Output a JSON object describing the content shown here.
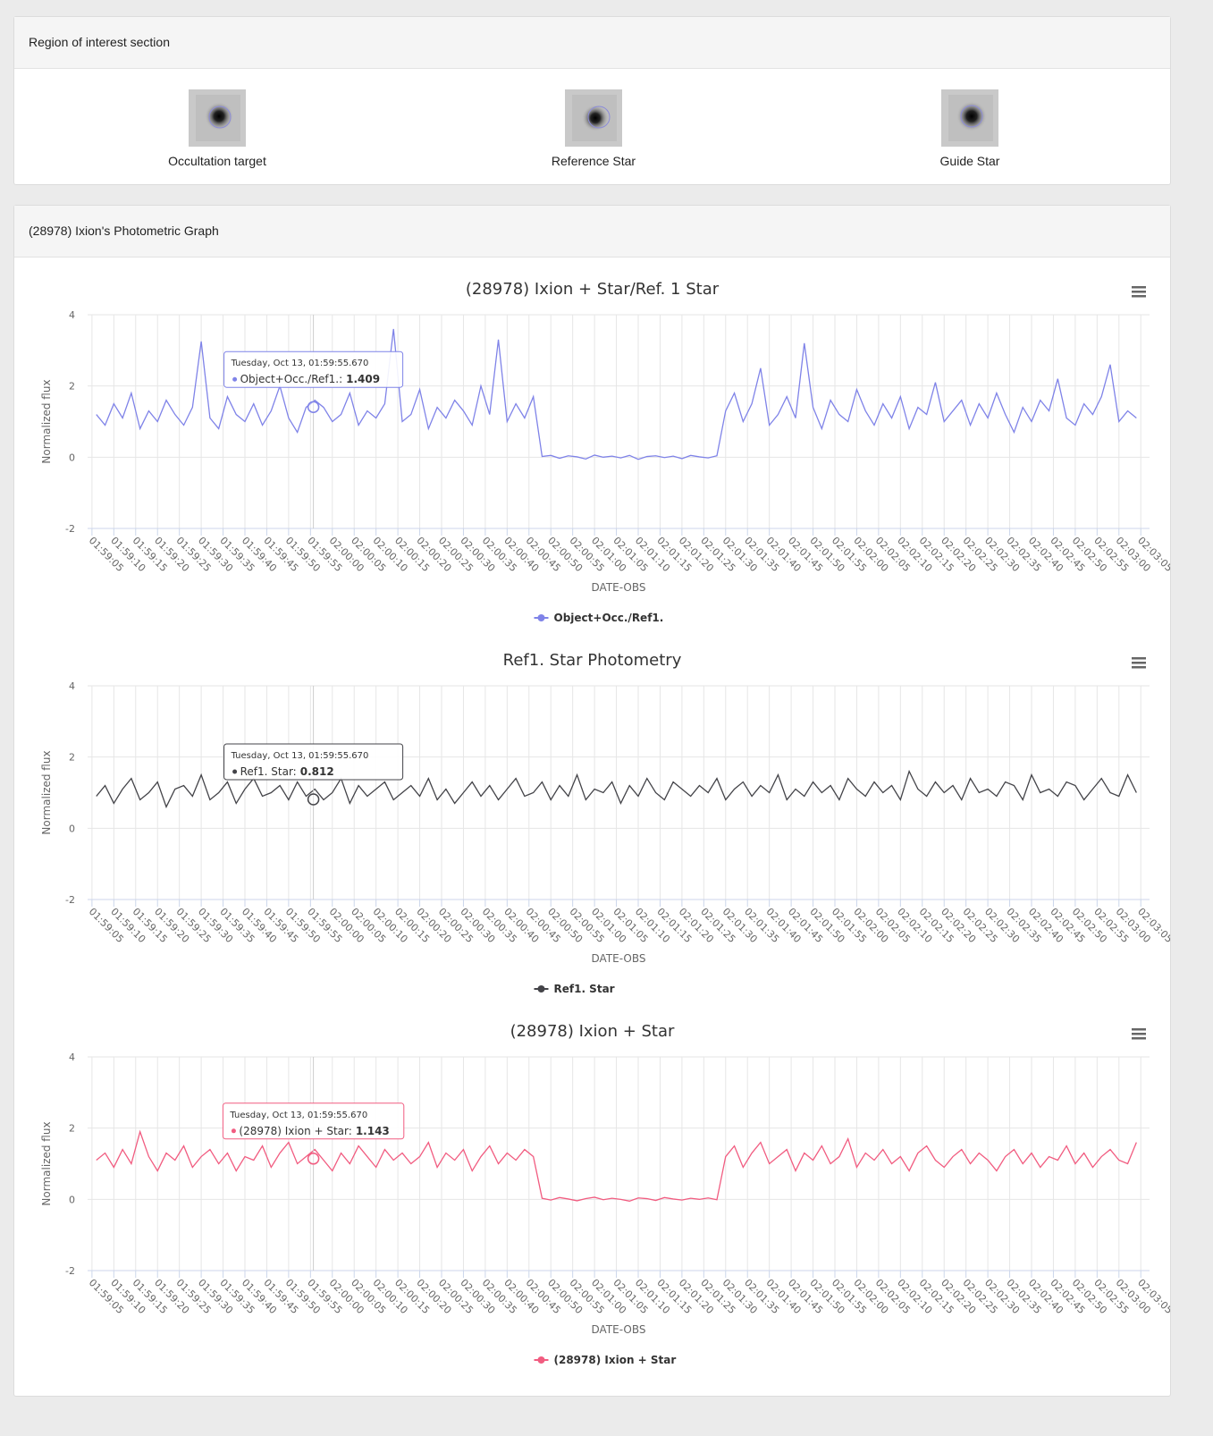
{
  "roi": {
    "title": "Region of interest section",
    "items": [
      "Occultation target",
      "Reference Star",
      "Guide Star"
    ]
  },
  "graph_panel": {
    "title": "(28978) Ixion's Photometric Graph"
  },
  "chart_data": [
    {
      "type": "line",
      "title": "(28978) Ixion + Star/Ref. 1 Star",
      "x_label": "DATE-OBS",
      "y_label": "Normalized flux",
      "x": [
        "01:59:06",
        "01:59:08",
        "01:59:10",
        "01:59:12",
        "01:59:14",
        "01:59:16",
        "01:59:18",
        "01:59:20",
        "01:59:22",
        "01:59:24",
        "01:59:26",
        "01:59:28",
        "01:59:30",
        "01:59:32",
        "01:59:34",
        "01:59:36",
        "01:59:38",
        "01:59:40",
        "01:59:42",
        "01:59:44",
        "01:59:46",
        "01:59:48",
        "01:59:50",
        "01:59:52",
        "01:59:54",
        "01:59:56",
        "01:59:58",
        "02:00:00",
        "02:00:02",
        "02:00:04",
        "02:00:06",
        "02:00:08",
        "02:00:10",
        "02:00:12",
        "02:00:14",
        "02:00:16",
        "02:00:18",
        "02:00:20",
        "02:00:22",
        "02:00:24",
        "02:00:26",
        "02:00:28",
        "02:00:30",
        "02:00:32",
        "02:00:34",
        "02:00:36",
        "02:00:38",
        "02:00:40",
        "02:00:42",
        "02:00:44",
        "02:00:46",
        "02:00:48",
        "02:00:50",
        "02:00:52",
        "02:00:54",
        "02:00:56",
        "02:00:58",
        "02:01:00",
        "02:01:02",
        "02:01:04",
        "02:01:06",
        "02:01:08",
        "02:01:10",
        "02:01:12",
        "02:01:14",
        "02:01:16",
        "02:01:18",
        "02:01:20",
        "02:01:22",
        "02:01:24",
        "02:01:26",
        "02:01:28",
        "02:01:30",
        "02:01:32",
        "02:01:34",
        "02:01:36",
        "02:01:38",
        "02:01:40",
        "02:01:42",
        "02:01:44",
        "02:01:46",
        "02:01:48",
        "02:01:50",
        "02:01:52",
        "02:01:54",
        "02:01:56",
        "02:01:58",
        "02:02:00",
        "02:02:02",
        "02:02:04",
        "02:02:06",
        "02:02:08",
        "02:02:10",
        "02:02:12",
        "02:02:14",
        "02:02:16",
        "02:02:18",
        "02:02:20",
        "02:02:22",
        "02:02:24",
        "02:02:26",
        "02:02:28",
        "02:02:30",
        "02:02:32",
        "02:02:34",
        "02:02:36",
        "02:02:38",
        "02:02:40",
        "02:02:42",
        "02:02:44",
        "02:02:46",
        "02:02:48",
        "02:02:50",
        "02:02:52",
        "02:02:54",
        "02:02:56",
        "02:02:58",
        "02:03:00",
        "02:03:02",
        "02:03:04"
      ],
      "xlim": [
        "01:59:04",
        "02:03:07"
      ],
      "xticks": [
        "01:59:05",
        "01:59:10",
        "01:59:15",
        "01:59:20",
        "01:59:25",
        "01:59:30",
        "01:59:35",
        "01:59:40",
        "01:59:45",
        "01:59:50",
        "01:59:55",
        "02:00:00",
        "02:00:05",
        "02:00:10",
        "02:00:15",
        "02:00:20",
        "02:00:25",
        "02:00:30",
        "02:00:35",
        "02:00:40",
        "02:00:45",
        "02:00:50",
        "02:00:55",
        "02:01:00",
        "02:01:05",
        "02:01:10",
        "02:01:15",
        "02:01:20",
        "02:01:25",
        "02:01:30",
        "02:01:35",
        "02:01:40",
        "02:01:45",
        "02:01:50",
        "02:01:55",
        "02:02:00",
        "02:02:05",
        "02:02:10",
        "02:02:15",
        "02:02:20",
        "02:02:25",
        "02:02:30",
        "02:02:35",
        "02:02:40",
        "02:02:45",
        "02:02:50",
        "02:02:55",
        "02:03:00",
        "02:03:05"
      ],
      "ylim": [
        -2,
        4
      ],
      "yticks": [
        -2,
        0,
        2,
        4
      ],
      "grid": true,
      "series": [
        {
          "name": "Object+Occ./Ref1.",
          "color": "#7f83e8",
          "values": [
            1.2,
            0.9,
            1.5,
            1.1,
            1.8,
            0.8,
            1.3,
            1.0,
            1.6,
            1.2,
            0.9,
            1.4,
            3.25,
            1.1,
            0.8,
            1.7,
            1.2,
            1.0,
            1.5,
            0.9,
            1.3,
            2.0,
            1.1,
            0.7,
            1.4,
            1.6,
            1.4,
            1.0,
            1.2,
            1.8,
            0.9,
            1.3,
            1.1,
            1.5,
            3.6,
            1.0,
            1.2,
            1.9,
            0.8,
            1.4,
            1.1,
            1.6,
            1.3,
            0.9,
            2.0,
            1.2,
            3.3,
            1.0,
            1.5,
            1.1,
            1.7,
            0.02,
            0.05,
            -0.03,
            0.04,
            0.01,
            -0.05,
            0.06,
            0.0,
            0.03,
            -0.02,
            0.05,
            -0.06,
            0.02,
            0.04,
            -0.01,
            0.03,
            -0.04,
            0.05,
            0.01,
            -0.02,
            0.04,
            1.3,
            1.8,
            1.0,
            1.5,
            2.5,
            0.9,
            1.2,
            1.7,
            1.1,
            3.2,
            1.4,
            0.8,
            1.6,
            1.2,
            1.0,
            1.9,
            1.3,
            0.9,
            1.5,
            1.1,
            1.7,
            0.8,
            1.4,
            1.2,
            2.1,
            1.0,
            1.3,
            1.6,
            0.9,
            1.5,
            1.1,
            1.8,
            1.2,
            0.7,
            1.4,
            1.0,
            1.6,
            1.3,
            2.2,
            1.1,
            0.9,
            1.5,
            1.2,
            1.7,
            2.6,
            1.0,
            1.3,
            1.1
          ]
        }
      ],
      "tooltip": {
        "date": "Tuesday, Oct 13, 01:59:55.670",
        "label": "Object+Occ./Ref1.:",
        "value": 1.409
      }
    },
    {
      "type": "line",
      "title": "Ref1. Star Photometry",
      "x_label": "DATE-OBS",
      "y_label": "Normalized flux",
      "x": [
        "01:59:06",
        "01:59:08",
        "01:59:10",
        "01:59:12",
        "01:59:14",
        "01:59:16",
        "01:59:18",
        "01:59:20",
        "01:59:22",
        "01:59:24",
        "01:59:26",
        "01:59:28",
        "01:59:30",
        "01:59:32",
        "01:59:34",
        "01:59:36",
        "01:59:38",
        "01:59:40",
        "01:59:42",
        "01:59:44",
        "01:59:46",
        "01:59:48",
        "01:59:50",
        "01:59:52",
        "01:59:54",
        "01:59:56",
        "01:59:58",
        "02:00:00",
        "02:00:02",
        "02:00:04",
        "02:00:06",
        "02:00:08",
        "02:00:10",
        "02:00:12",
        "02:00:14",
        "02:00:16",
        "02:00:18",
        "02:00:20",
        "02:00:22",
        "02:00:24",
        "02:00:26",
        "02:00:28",
        "02:00:30",
        "02:00:32",
        "02:00:34",
        "02:00:36",
        "02:00:38",
        "02:00:40",
        "02:00:42",
        "02:00:44",
        "02:00:46",
        "02:00:48",
        "02:00:50",
        "02:00:52",
        "02:00:54",
        "02:00:56",
        "02:00:58",
        "02:01:00",
        "02:01:02",
        "02:01:04",
        "02:01:06",
        "02:01:08",
        "02:01:10",
        "02:01:12",
        "02:01:14",
        "02:01:16",
        "02:01:18",
        "02:01:20",
        "02:01:22",
        "02:01:24",
        "02:01:26",
        "02:01:28",
        "02:01:30",
        "02:01:32",
        "02:01:34",
        "02:01:36",
        "02:01:38",
        "02:01:40",
        "02:01:42",
        "02:01:44",
        "02:01:46",
        "02:01:48",
        "02:01:50",
        "02:01:52",
        "02:01:54",
        "02:01:56",
        "02:01:58",
        "02:02:00",
        "02:02:02",
        "02:02:04",
        "02:02:06",
        "02:02:08",
        "02:02:10",
        "02:02:12",
        "02:02:14",
        "02:02:16",
        "02:02:18",
        "02:02:20",
        "02:02:22",
        "02:02:24",
        "02:02:26",
        "02:02:28",
        "02:02:30",
        "02:02:32",
        "02:02:34",
        "02:02:36",
        "02:02:38",
        "02:02:40",
        "02:02:42",
        "02:02:44",
        "02:02:46",
        "02:02:48",
        "02:02:50",
        "02:02:52",
        "02:02:54",
        "02:02:56",
        "02:02:58",
        "02:03:00",
        "02:03:02",
        "02:03:04"
      ],
      "xlim": [
        "01:59:04",
        "02:03:07"
      ],
      "xticks": [
        "01:59:05",
        "01:59:10",
        "01:59:15",
        "01:59:20",
        "01:59:25",
        "01:59:30",
        "01:59:35",
        "01:59:40",
        "01:59:45",
        "01:59:50",
        "01:59:55",
        "02:00:00",
        "02:00:05",
        "02:00:10",
        "02:00:15",
        "02:00:20",
        "02:00:25",
        "02:00:30",
        "02:00:35",
        "02:00:40",
        "02:00:45",
        "02:00:50",
        "02:00:55",
        "02:01:00",
        "02:01:05",
        "02:01:10",
        "02:01:15",
        "02:01:20",
        "02:01:25",
        "02:01:30",
        "02:01:35",
        "02:01:40",
        "02:01:45",
        "02:01:50",
        "02:01:55",
        "02:02:00",
        "02:02:05",
        "02:02:10",
        "02:02:15",
        "02:02:20",
        "02:02:25",
        "02:02:30",
        "02:02:35",
        "02:02:40",
        "02:02:45",
        "02:02:50",
        "02:02:55",
        "02:03:00",
        "02:03:05"
      ],
      "ylim": [
        -2,
        4
      ],
      "yticks": [
        -2,
        0,
        2,
        4
      ],
      "grid": true,
      "series": [
        {
          "name": "Ref1. Star",
          "color": "#434348",
          "values": [
            0.9,
            1.2,
            0.7,
            1.1,
            1.4,
            0.8,
            1.0,
            1.3,
            0.6,
            1.1,
            1.2,
            0.9,
            1.5,
            0.8,
            1.0,
            1.3,
            0.7,
            1.1,
            1.4,
            0.9,
            1.0,
            1.2,
            0.8,
            1.3,
            0.9,
            1.1,
            0.8,
            1.0,
            1.4,
            0.7,
            1.2,
            0.9,
            1.1,
            1.3,
            0.8,
            1.0,
            1.2,
            0.9,
            1.4,
            0.8,
            1.1,
            0.7,
            1.0,
            1.3,
            0.9,
            1.2,
            0.8,
            1.1,
            1.4,
            0.9,
            1.0,
            1.3,
            0.8,
            1.2,
            0.9,
            1.5,
            0.8,
            1.1,
            1.0,
            1.3,
            0.7,
            1.2,
            0.9,
            1.4,
            1.0,
            0.8,
            1.3,
            1.1,
            0.9,
            1.2,
            1.0,
            1.4,
            0.8,
            1.1,
            1.3,
            0.9,
            1.2,
            1.0,
            1.5,
            0.8,
            1.1,
            0.9,
            1.3,
            1.0,
            1.2,
            0.8,
            1.4,
            1.1,
            0.9,
            1.3,
            1.0,
            1.2,
            0.8,
            1.6,
            1.1,
            0.9,
            1.3,
            1.0,
            1.2,
            0.8,
            1.4,
            1.0,
            1.1,
            0.9,
            1.3,
            1.2,
            0.8,
            1.5,
            1.0,
            1.1,
            0.9,
            1.3,
            1.2,
            0.8,
            1.1,
            1.4,
            1.0,
            0.9,
            1.5,
            1.0
          ]
        }
      ],
      "tooltip": {
        "date": "Tuesday, Oct 13, 01:59:55.670",
        "label": "Ref1. Star:",
        "value": 0.812
      }
    },
    {
      "type": "line",
      "title": "(28978) Ixion + Star",
      "x_label": "DATE-OBS",
      "y_label": "Normalized flux",
      "x": [
        "01:59:06",
        "01:59:08",
        "01:59:10",
        "01:59:12",
        "01:59:14",
        "01:59:16",
        "01:59:18",
        "01:59:20",
        "01:59:22",
        "01:59:24",
        "01:59:26",
        "01:59:28",
        "01:59:30",
        "01:59:32",
        "01:59:34",
        "01:59:36",
        "01:59:38",
        "01:59:40",
        "01:59:42",
        "01:59:44",
        "01:59:46",
        "01:59:48",
        "01:59:50",
        "01:59:52",
        "01:59:54",
        "01:59:56",
        "01:59:58",
        "02:00:00",
        "02:00:02",
        "02:00:04",
        "02:00:06",
        "02:00:08",
        "02:00:10",
        "02:00:12",
        "02:00:14",
        "02:00:16",
        "02:00:18",
        "02:00:20",
        "02:00:22",
        "02:00:24",
        "02:00:26",
        "02:00:28",
        "02:00:30",
        "02:00:32",
        "02:00:34",
        "02:00:36",
        "02:00:38",
        "02:00:40",
        "02:00:42",
        "02:00:44",
        "02:00:46",
        "02:00:48",
        "02:00:50",
        "02:00:52",
        "02:00:54",
        "02:00:56",
        "02:00:58",
        "02:01:00",
        "02:01:02",
        "02:01:04",
        "02:01:06",
        "02:01:08",
        "02:01:10",
        "02:01:12",
        "02:01:14",
        "02:01:16",
        "02:01:18",
        "02:01:20",
        "02:01:22",
        "02:01:24",
        "02:01:26",
        "02:01:28",
        "02:01:30",
        "02:01:32",
        "02:01:34",
        "02:01:36",
        "02:01:38",
        "02:01:40",
        "02:01:42",
        "02:01:44",
        "02:01:46",
        "02:01:48",
        "02:01:50",
        "02:01:52",
        "02:01:54",
        "02:01:56",
        "02:01:58",
        "02:02:00",
        "02:02:02",
        "02:02:04",
        "02:02:06",
        "02:02:08",
        "02:02:10",
        "02:02:12",
        "02:02:14",
        "02:02:16",
        "02:02:18",
        "02:02:20",
        "02:02:22",
        "02:02:24",
        "02:02:26",
        "02:02:28",
        "02:02:30",
        "02:02:32",
        "02:02:34",
        "02:02:36",
        "02:02:38",
        "02:02:40",
        "02:02:42",
        "02:02:44",
        "02:02:46",
        "02:02:48",
        "02:02:50",
        "02:02:52",
        "02:02:54",
        "02:02:56",
        "02:02:58",
        "02:03:00",
        "02:03:02",
        "02:03:04"
      ],
      "xlim": [
        "01:59:04",
        "02:03:07"
      ],
      "xticks": [
        "01:59:05",
        "01:59:10",
        "01:59:15",
        "01:59:20",
        "01:59:25",
        "01:59:30",
        "01:59:35",
        "01:59:40",
        "01:59:45",
        "01:59:50",
        "01:59:55",
        "02:00:00",
        "02:00:05",
        "02:00:10",
        "02:00:15",
        "02:00:20",
        "02:00:25",
        "02:00:30",
        "02:00:35",
        "02:00:40",
        "02:00:45",
        "02:00:50",
        "02:00:55",
        "02:01:00",
        "02:01:05",
        "02:01:10",
        "02:01:15",
        "02:01:20",
        "02:01:25",
        "02:01:30",
        "02:01:35",
        "02:01:40",
        "02:01:45",
        "02:01:50",
        "02:01:55",
        "02:02:00",
        "02:02:05",
        "02:02:10",
        "02:02:15",
        "02:02:20",
        "02:02:25",
        "02:02:30",
        "02:02:35",
        "02:02:40",
        "02:02:45",
        "02:02:50",
        "02:02:55",
        "02:03:00",
        "02:03:05"
      ],
      "ylim": [
        -2,
        4
      ],
      "yticks": [
        -2,
        0,
        2,
        4
      ],
      "grid": true,
      "series": [
        {
          "name": "(28978) Ixion + Star",
          "color": "#f15c80",
          "values": [
            1.1,
            1.3,
            0.9,
            1.4,
            1.0,
            1.9,
            1.2,
            0.8,
            1.3,
            1.1,
            1.5,
            0.9,
            1.2,
            1.4,
            1.0,
            1.3,
            0.8,
            1.2,
            1.1,
            1.5,
            0.9,
            1.3,
            1.6,
            1.0,
            1.2,
            1.4,
            1.1,
            0.8,
            1.3,
            1.0,
            1.5,
            1.2,
            0.9,
            1.4,
            1.1,
            1.3,
            1.0,
            1.2,
            1.6,
            0.9,
            1.3,
            1.1,
            1.4,
            0.8,
            1.2,
            1.5,
            1.0,
            1.3,
            1.1,
            1.4,
            1.2,
            0.03,
            -0.02,
            0.05,
            0.01,
            -0.04,
            0.02,
            0.06,
            -0.01,
            0.03,
            0.0,
            -0.05,
            0.04,
            0.02,
            -0.03,
            0.05,
            0.01,
            -0.02,
            0.03,
            0.0,
            0.04,
            -0.01,
            1.2,
            1.5,
            0.9,
            1.3,
            1.6,
            1.0,
            1.2,
            1.4,
            0.8,
            1.3,
            1.1,
            1.5,
            1.0,
            1.2,
            1.7,
            0.9,
            1.3,
            1.1,
            1.4,
            1.0,
            1.2,
            0.8,
            1.3,
            1.5,
            1.1,
            0.9,
            1.2,
            1.4,
            1.0,
            1.3,
            1.1,
            0.8,
            1.2,
            1.4,
            1.0,
            1.3,
            0.9,
            1.2,
            1.1,
            1.5,
            1.0,
            1.3,
            0.9,
            1.2,
            1.4,
            1.1,
            1.0,
            1.6
          ]
        }
      ],
      "tooltip": {
        "date": "Tuesday, Oct 13, 01:59:55.670",
        "label": "(28978) Ixion + Star:",
        "value": 1.143
      }
    }
  ]
}
